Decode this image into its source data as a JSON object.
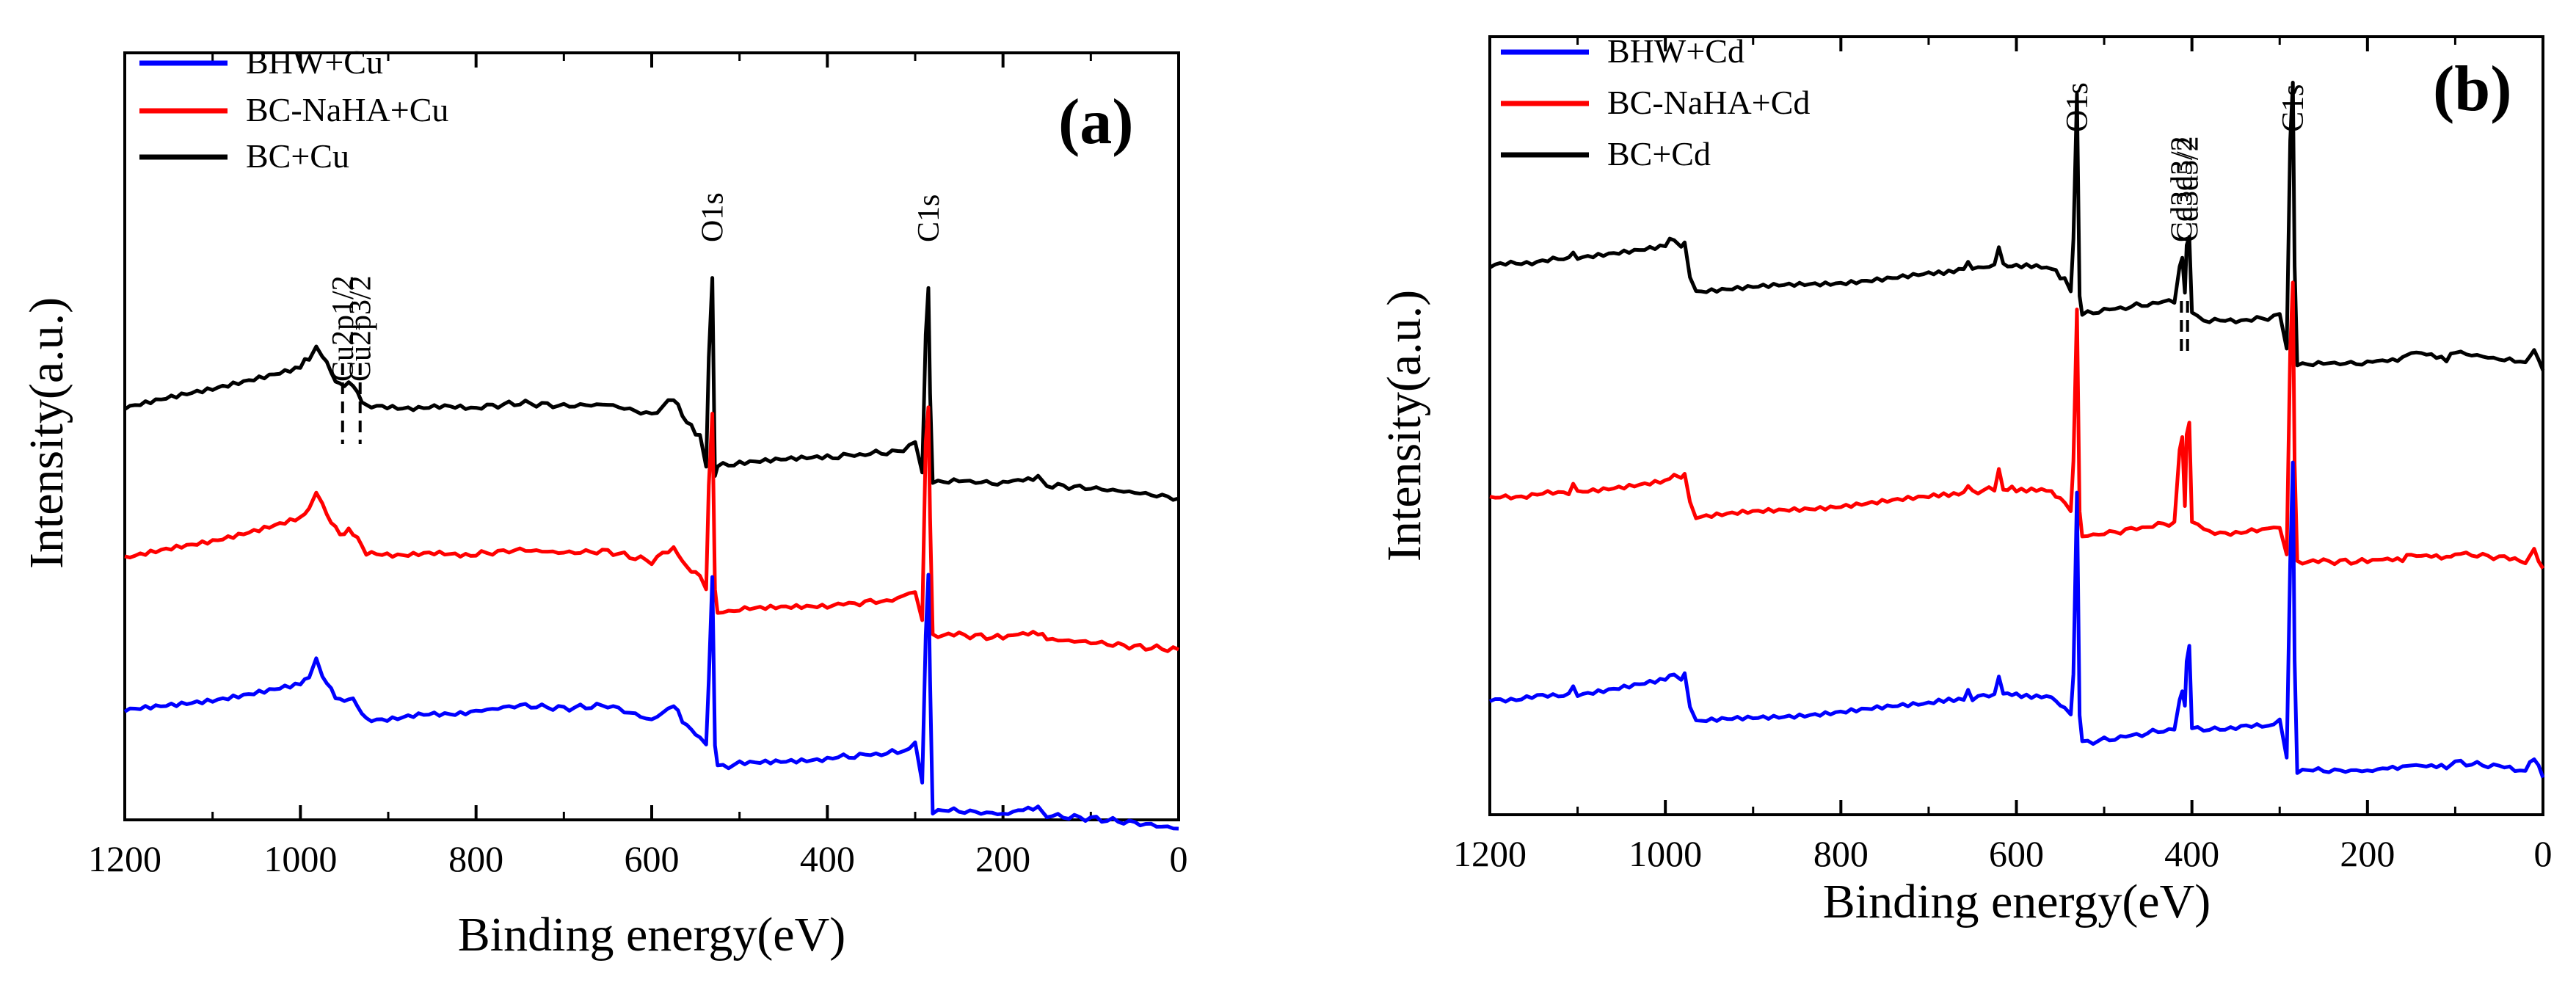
{
  "chart_data": [
    {
      "type": "line",
      "panel_label": "(a)",
      "xlabel": "Binding energy(eV)",
      "ylabel": "Intensity(a.u.)",
      "xlim": [
        1200,
        0
      ],
      "xticks": [
        1200,
        1000,
        800,
        600,
        400,
        200,
        0
      ],
      "y_ticks_shown": false,
      "legend_position": "top-left",
      "series": [
        {
          "name": "BHW+Cu",
          "color": "#0000ff",
          "offset": 2.0,
          "x": [
            1200,
            1100,
            1000,
            990,
            982,
            975,
            960,
            950,
            945,
            935,
            925,
            800,
            750,
            700,
            650,
            600,
            575,
            565,
            560,
            545,
            538,
            535,
            531,
            528,
            525,
            500,
            400,
            320,
            300,
            292,
            288,
            285,
            283,
            280,
            250,
            200,
            160,
            150,
            100,
            50,
            0
          ],
          "y": [
            0.68,
            0.76,
            0.86,
            0.92,
            1.05,
            0.92,
            0.78,
            0.74,
            0.78,
            0.72,
            0.62,
            0.68,
            0.72,
            0.7,
            0.72,
            0.62,
            0.72,
            0.62,
            0.58,
            0.5,
            0.45,
            0.9,
            1.6,
            0.45,
            0.3,
            0.32,
            0.36,
            0.4,
            0.45,
            0.2,
            1.2,
            1.6,
            0.9,
            0.0,
            0.0,
            -0.02,
            0.02,
            -0.03,
            -0.05,
            -0.08,
            -0.12
          ]
        },
        {
          "name": "BC-NaHA+Cu",
          "color": "#ff0000",
          "offset": 1.0,
          "x": [
            1200,
            1100,
            1000,
            990,
            982,
            975,
            960,
            950,
            945,
            935,
            925,
            800,
            750,
            700,
            650,
            600,
            575,
            565,
            560,
            545,
            538,
            535,
            531,
            528,
            525,
            500,
            400,
            320,
            300,
            292,
            288,
            285,
            283,
            280,
            250,
            200,
            160,
            150,
            100,
            50,
            0
          ],
          "y": [
            0.52,
            0.64,
            0.8,
            0.86,
            0.95,
            0.88,
            0.72,
            0.68,
            0.72,
            0.66,
            0.55,
            0.55,
            0.58,
            0.56,
            0.57,
            0.5,
            0.6,
            0.5,
            0.46,
            0.4,
            0.3,
            1.0,
            1.5,
            0.3,
            0.15,
            0.17,
            0.2,
            0.24,
            0.3,
            0.1,
            1.3,
            1.55,
            0.8,
            0.0,
            0.0,
            -0.02,
            0.02,
            -0.03,
            -0.05,
            -0.08,
            -0.1
          ]
        },
        {
          "name": "BC+Cu",
          "color": "#000000",
          "offset": 0.0,
          "x": [
            1200,
            1100,
            1000,
            990,
            982,
            975,
            960,
            950,
            945,
            935,
            925,
            800,
            750,
            700,
            650,
            600,
            575,
            565,
            560,
            545,
            538,
            535,
            531,
            528,
            525,
            500,
            400,
            320,
            300,
            292,
            288,
            285,
            283,
            280,
            250,
            200,
            160,
            150,
            100,
            50,
            0
          ],
          "y": [
            0.5,
            0.62,
            0.78,
            0.84,
            0.92,
            0.86,
            0.68,
            0.64,
            0.68,
            0.6,
            0.5,
            0.5,
            0.53,
            0.51,
            0.52,
            0.45,
            0.56,
            0.45,
            0.4,
            0.3,
            0.1,
            0.85,
            1.4,
            0.05,
            0.1,
            0.12,
            0.16,
            0.2,
            0.26,
            0.05,
            1.0,
            1.3,
            0.6,
            0.0,
            0.0,
            -0.02,
            0.03,
            -0.03,
            -0.05,
            -0.08,
            -0.12
          ]
        }
      ],
      "annotations": [
        {
          "text": "Cu2p1/2",
          "x": 952
        },
        {
          "text": "Cu2p3/2",
          "x": 932
        },
        {
          "text": "O1s",
          "x": 531
        },
        {
          "text": "C1s",
          "x": 285
        }
      ]
    },
    {
      "type": "line",
      "panel_label": "(b)",
      "xlabel": "Binding energy(eV)",
      "ylabel": "Intensity(a.u.)",
      "xlim": [
        1200,
        0
      ],
      "xticks": [
        1200,
        1000,
        800,
        600,
        400,
        200,
        0
      ],
      "y_ticks_shown": false,
      "legend_position": "top-left",
      "series": [
        {
          "name": "BHW+Cd",
          "color": "#0000ff",
          "offset": 2.0,
          "x": [
            1200,
            1110,
            1105,
            1100,
            1000,
            990,
            982,
            978,
            972,
            965,
            800,
            700,
            660,
            655,
            650,
            625,
            620,
            615,
            600,
            560,
            545,
            538,
            535,
            531,
            528,
            525,
            500,
            420,
            414,
            411,
            408,
            406,
            403,
            400,
            380,
            320,
            300,
            292,
            288,
            285,
            283,
            280,
            250,
            200,
            160,
            150,
            110,
            100,
            50,
            20,
            10,
            0
          ],
          "y": [
            0.5,
            0.55,
            0.6,
            0.55,
            0.65,
            0.7,
            0.66,
            0.7,
            0.45,
            0.35,
            0.42,
            0.48,
            0.52,
            0.56,
            0.52,
            0.55,
            0.68,
            0.55,
            0.55,
            0.52,
            0.45,
            0.4,
            0.7,
            2.0,
            0.4,
            0.2,
            0.22,
            0.3,
            0.5,
            0.55,
            0.45,
            0.8,
            0.9,
            0.3,
            0.3,
            0.32,
            0.35,
            0.1,
            1.5,
            2.2,
            0.8,
            0.0,
            0.0,
            0.0,
            0.02,
            0.05,
            0.02,
            0.06,
            0.03,
            0.0,
            0.1,
            -0.05
          ]
        },
        {
          "name": "BC-NaHA+Cd",
          "color": "#ff0000",
          "offset": 1.0,
          "x": [
            1200,
            1110,
            1105,
            1100,
            1000,
            990,
            982,
            978,
            972,
            965,
            800,
            700,
            660,
            655,
            650,
            625,
            620,
            615,
            600,
            560,
            545,
            538,
            535,
            531,
            528,
            525,
            500,
            420,
            414,
            411,
            408,
            406,
            403,
            400,
            380,
            320,
            300,
            292,
            288,
            285,
            283,
            280,
            250,
            200,
            160,
            150,
            110,
            100,
            50,
            20,
            10,
            0
          ],
          "y": [
            0.45,
            0.5,
            0.55,
            0.5,
            0.58,
            0.62,
            0.58,
            0.62,
            0.42,
            0.32,
            0.4,
            0.46,
            0.5,
            0.55,
            0.5,
            0.52,
            0.65,
            0.52,
            0.52,
            0.5,
            0.42,
            0.35,
            0.7,
            1.8,
            0.35,
            0.18,
            0.2,
            0.28,
            0.8,
            0.9,
            0.4,
            0.9,
            1.0,
            0.3,
            0.2,
            0.22,
            0.25,
            0.05,
            1.5,
            2.0,
            0.7,
            0.0,
            0.0,
            0.0,
            0.02,
            0.05,
            0.02,
            0.06,
            0.03,
            0.0,
            0.08,
            -0.05
          ]
        },
        {
          "name": "BC+Cd",
          "color": "#000000",
          "offset": 0.0,
          "x": [
            1200,
            1110,
            1105,
            1100,
            1000,
            990,
            982,
            978,
            972,
            965,
            800,
            700,
            660,
            655,
            650,
            625,
            620,
            615,
            600,
            560,
            545,
            538,
            535,
            531,
            528,
            525,
            500,
            420,
            414,
            411,
            408,
            406,
            403,
            400,
            380,
            320,
            300,
            292,
            288,
            285,
            283,
            280,
            250,
            200,
            160,
            150,
            110,
            100,
            50,
            20,
            10,
            0
          ],
          "y": [
            0.7,
            0.75,
            0.8,
            0.75,
            0.85,
            0.9,
            0.84,
            0.88,
            0.62,
            0.52,
            0.58,
            0.64,
            0.68,
            0.72,
            0.68,
            0.7,
            0.85,
            0.7,
            0.7,
            0.68,
            0.6,
            0.52,
            0.9,
            1.95,
            0.5,
            0.35,
            0.38,
            0.45,
            0.7,
            0.75,
            0.5,
            0.85,
            0.9,
            0.35,
            0.3,
            0.32,
            0.35,
            0.1,
            1.6,
            2.0,
            0.7,
            0.0,
            0.0,
            0.0,
            0.04,
            0.08,
            0.03,
            0.08,
            0.03,
            0.0,
            0.1,
            -0.05
          ]
        }
      ],
      "annotations": [
        {
          "text": "O1s",
          "x": 531
        },
        {
          "text": "Cd3d3/2",
          "x": 412
        },
        {
          "text": "Cd3d5/2",
          "x": 405
        },
        {
          "text": "C1s",
          "x": 285
        }
      ]
    }
  ]
}
